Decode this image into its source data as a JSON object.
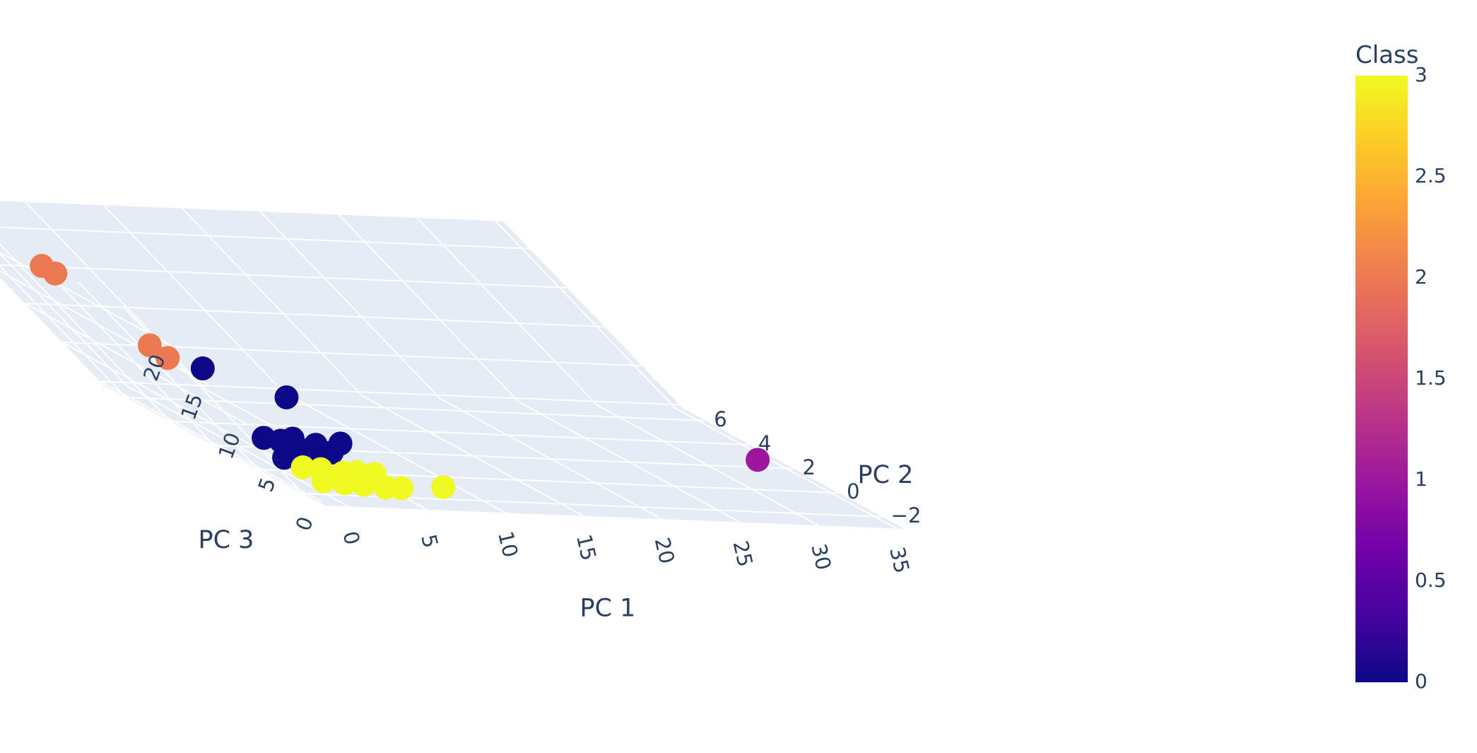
{
  "chart_data": {
    "type": "scatter",
    "subtype": "3d",
    "xlabel": "PC 1",
    "ylabel": "PC 2",
    "zlabel": "PC 3",
    "x_ticks": [
      "0",
      "5",
      "10",
      "15",
      "20",
      "25",
      "30",
      "35"
    ],
    "y_ticks": [
      "−2",
      "0",
      "2",
      "4",
      "6"
    ],
    "z_ticks": [
      "0",
      "5",
      "10",
      "15",
      "20"
    ],
    "xlim": [
      -1.5,
      35.5
    ],
    "ylim": [
      -3,
      7
    ],
    "zlim": [
      -0.5,
      23.5
    ],
    "grid": true,
    "background_color": "#e5ecf6",
    "colorbar": {
      "title": "Class",
      "range": [
        0,
        3
      ],
      "ticks": [
        "0",
        "0.5",
        "1",
        "1.5",
        "2",
        "2.5",
        "3"
      ],
      "colorscale": [
        "#0d0887",
        "#46039f",
        "#7201a8",
        "#9c179e",
        "#bd3786",
        "#d8576b",
        "#ed7953",
        "#fb9f3a",
        "#fdca26",
        "#f0f921"
      ]
    },
    "points": [
      {
        "x": -1.5,
        "y": 2,
        "z": 22.5,
        "class": 2
      },
      {
        "x": -1.3,
        "y": 1.7,
        "z": 22.0,
        "class": 2
      },
      {
        "x": 0.6,
        "y": 2,
        "z": 12.5,
        "class": 2
      },
      {
        "x": 0.7,
        "y": 1.6,
        "z": 11.5,
        "class": 2
      },
      {
        "x": 2.5,
        "y": 1.8,
        "z": 10.0,
        "class": 0
      },
      {
        "x": 6.5,
        "y": 2.2,
        "z": 6.0,
        "class": 0
      },
      {
        "x": 1.2,
        "y": 0.5,
        "z": 3.0,
        "class": 0
      },
      {
        "x": 2.0,
        "y": 0.3,
        "z": 3.0,
        "class": 0
      },
      {
        "x": 3.0,
        "y": 0.4,
        "z": 3.2,
        "class": 0
      },
      {
        "x": 4.0,
        "y": 0.2,
        "z": 2.8,
        "class": 0
      },
      {
        "x": 2.6,
        "y": 0.1,
        "z": 2.2,
        "class": 0
      },
      {
        "x": 4.5,
        "y": 0.1,
        "z": 2.0,
        "class": 0
      },
      {
        "x": 6.0,
        "y": 0.6,
        "z": 2.5,
        "class": 0
      },
      {
        "x": 1.5,
        "y": 0.0,
        "z": 2.0,
        "class": 0
      },
      {
        "x": 0.8,
        "y": -0.2,
        "z": 1.5,
        "class": 0
      },
      {
        "x": 3.5,
        "y": -0.1,
        "z": 1.8,
        "class": 0
      },
      {
        "x": 1.0,
        "y": -0.8,
        "z": 1.2,
        "class": 3
      },
      {
        "x": 2.0,
        "y": -0.9,
        "z": 1.2,
        "class": 3
      },
      {
        "x": 3.2,
        "y": -1.0,
        "z": 1.0,
        "class": 3
      },
      {
        "x": 4.2,
        "y": -0.9,
        "z": 1.0,
        "class": 3
      },
      {
        "x": 5.2,
        "y": -1.0,
        "z": 1.0,
        "class": 3
      },
      {
        "x": 1.0,
        "y": -1.5,
        "z": 0.5,
        "class": 3
      },
      {
        "x": 2.2,
        "y": -1.6,
        "z": 0.5,
        "class": 3
      },
      {
        "x": 3.4,
        "y": -1.6,
        "z": 0.4,
        "class": 3
      },
      {
        "x": 4.6,
        "y": -1.7,
        "z": 0.3,
        "class": 3
      },
      {
        "x": 5.6,
        "y": -1.7,
        "z": 0.3,
        "class": 3
      },
      {
        "x": 8.5,
        "y": -1.6,
        "z": 0.5,
        "class": 3
      },
      {
        "x": 33.8,
        "y": 2.2,
        "z": 0.2,
        "class": 1
      }
    ]
  }
}
